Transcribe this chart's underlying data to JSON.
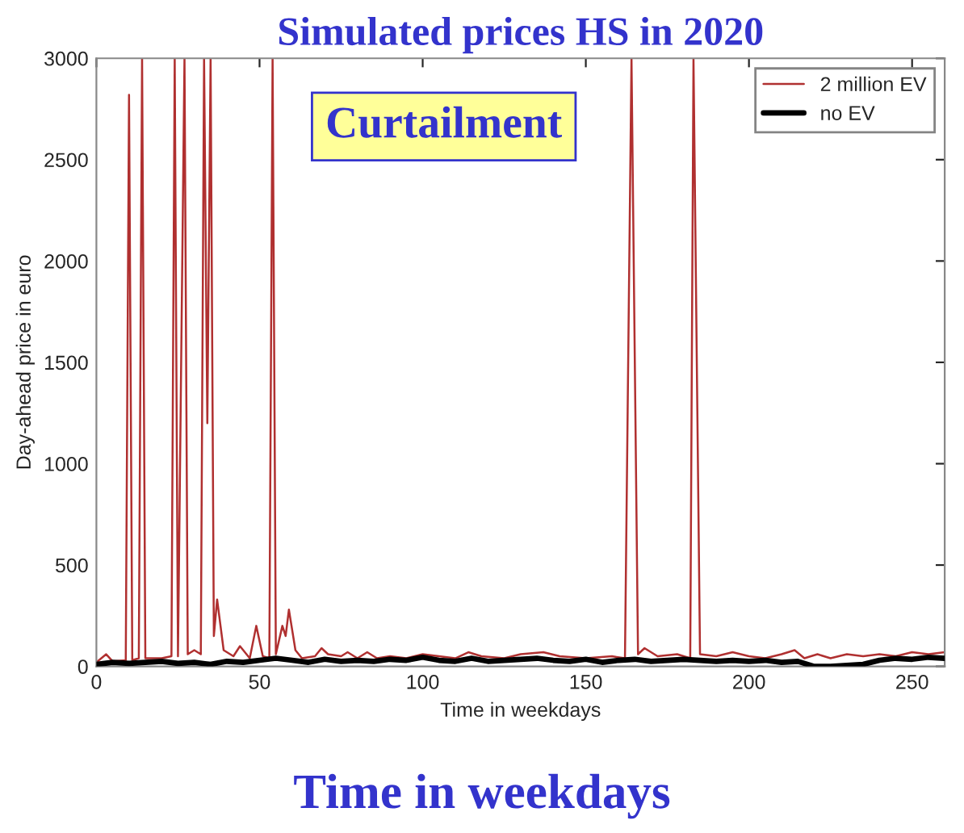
{
  "chart_data": {
    "type": "line",
    "title": "Simulated prices HS in 2020",
    "xlabel": "Time in weekdays",
    "ylabel": "Day-ahead price in euro",
    "annotations": [
      "Curtailment",
      "Time in weekdays"
    ],
    "xlim": [
      0,
      260
    ],
    "xticks": [
      0,
      50,
      100,
      150,
      200,
      250
    ],
    "ylim": [
      0,
      3000
    ],
    "yticks": [
      0,
      500,
      1000,
      1500,
      2000,
      2500,
      3000
    ],
    "legend": "top right",
    "grid": false,
    "marker": "none",
    "line_style": "solid",
    "series": [
      {
        "name": "2 million EV",
        "color": "#b03030",
        "x": [
          0,
          3,
          5,
          9,
          10,
          11,
          13,
          14,
          15,
          20,
          23,
          24,
          25,
          27,
          28,
          30,
          32,
          33,
          34,
          35,
          36,
          37,
          39,
          42,
          44,
          47,
          49,
          51,
          53,
          54,
          55,
          57,
          58,
          59,
          61,
          63,
          67,
          69,
          71,
          75,
          77,
          80,
          83,
          86,
          90,
          95,
          100,
          105,
          110,
          114,
          118,
          125,
          130,
          137,
          142,
          150,
          158,
          162,
          164,
          166,
          168,
          172,
          178,
          182,
          183,
          185,
          190,
          195,
          200,
          205,
          210,
          214,
          217,
          221,
          225,
          230,
          235,
          240,
          245,
          250,
          255,
          260
        ],
        "values": [
          20,
          60,
          25,
          30,
          2820,
          30,
          40,
          3000,
          40,
          40,
          50,
          3000,
          50,
          3000,
          60,
          80,
          60,
          3000,
          1200,
          3000,
          150,
          330,
          80,
          50,
          100,
          40,
          200,
          50,
          40,
          3000,
          60,
          200,
          150,
          280,
          80,
          40,
          50,
          90,
          60,
          50,
          70,
          40,
          70,
          40,
          50,
          40,
          60,
          50,
          40,
          70,
          50,
          40,
          60,
          70,
          50,
          40,
          50,
          40,
          3000,
          60,
          90,
          50,
          60,
          40,
          3000,
          60,
          50,
          70,
          50,
          40,
          60,
          80,
          40,
          60,
          40,
          60,
          50,
          60,
          50,
          70,
          60,
          70
        ]
      },
      {
        "name": "no EV",
        "color": "#000000",
        "x": [
          0,
          5,
          10,
          15,
          20,
          25,
          30,
          35,
          40,
          45,
          50,
          55,
          60,
          65,
          70,
          75,
          80,
          85,
          90,
          95,
          100,
          105,
          110,
          115,
          120,
          125,
          130,
          135,
          140,
          145,
          150,
          155,
          160,
          165,
          170,
          175,
          180,
          185,
          190,
          195,
          200,
          205,
          210,
          215,
          220,
          225,
          230,
          235,
          240,
          245,
          250,
          255,
          260
        ],
        "values": [
          10,
          20,
          15,
          20,
          25,
          15,
          20,
          10,
          25,
          20,
          30,
          40,
          30,
          20,
          35,
          25,
          30,
          25,
          35,
          30,
          45,
          30,
          25,
          40,
          25,
          30,
          35,
          40,
          30,
          25,
          35,
          20,
          30,
          35,
          25,
          30,
          35,
          30,
          25,
          30,
          25,
          30,
          20,
          25,
          0,
          0,
          5,
          10,
          30,
          40,
          35,
          45,
          40
        ]
      }
    ]
  }
}
